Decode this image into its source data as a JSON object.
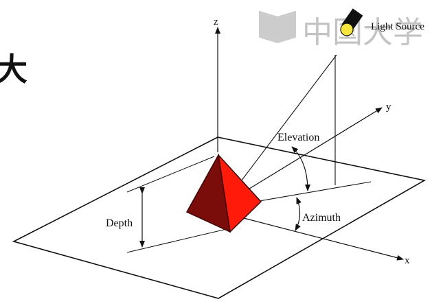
{
  "labels": {
    "z": "z",
    "y": "y",
    "x": "x",
    "elevation": "Elevation",
    "azimuth": "Azimuth",
    "depth": "Depth",
    "light_source": "Light Source"
  },
  "watermark": {
    "text": "中国大学"
  },
  "left_fragment": "大",
  "colors": {
    "line": "#111111",
    "pyramid_front": "#ff1a0a",
    "pyramid_side": "#7a0d0a",
    "pyramid_edge": "#3a0505",
    "lamp_bulb": "#f6e53a",
    "lamp_body": "#111111",
    "watermark": "#b9b9b9"
  },
  "icons": {
    "lamp": "light-source-lamp-icon",
    "watermark_logo": "book-logo-icon"
  }
}
